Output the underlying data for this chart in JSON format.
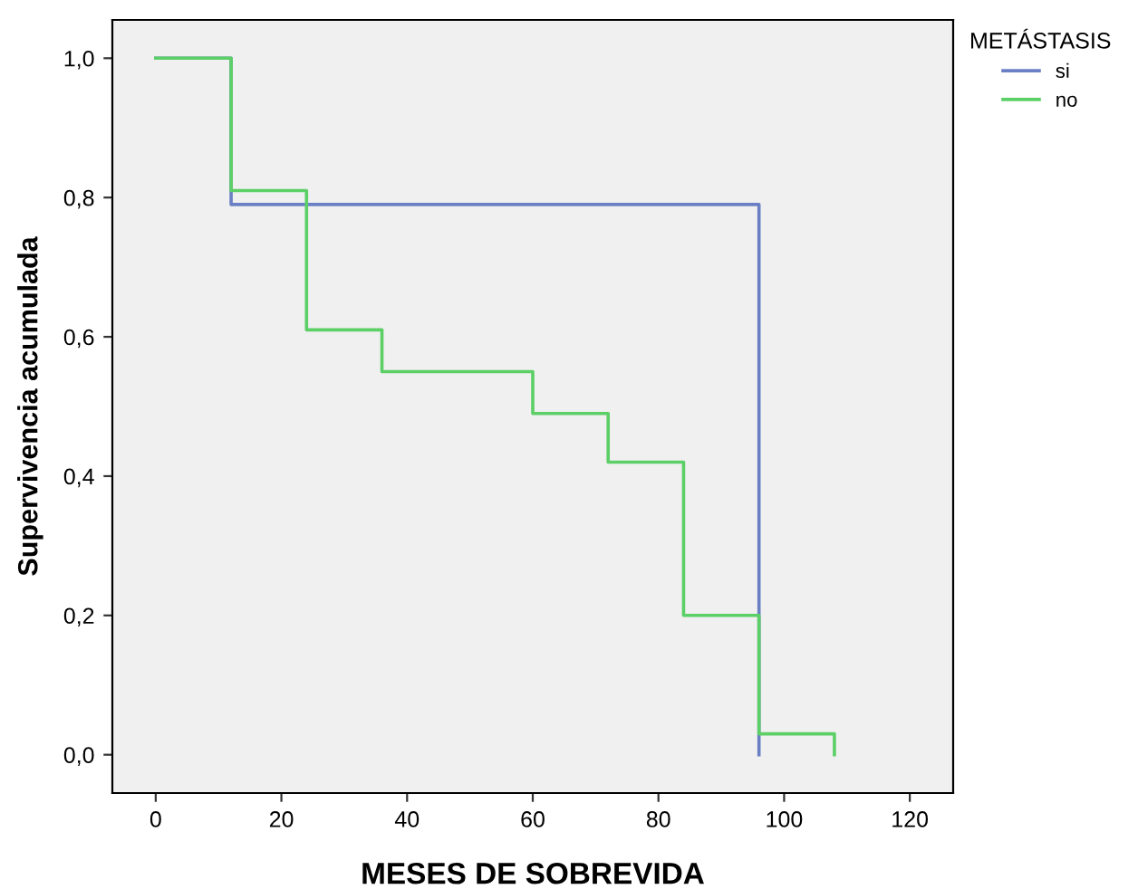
{
  "chart_data": {
    "type": "step",
    "xlabel": "MESES DE SOBREVIDA",
    "ylabel": "Supervivencia acumulada",
    "legend_title": "METÁSTASIS",
    "legend": "top right",
    "grid": false,
    "xlim": [
      -6.9,
      126.9
    ],
    "xticks": [
      0,
      20,
      40,
      60,
      80,
      100,
      120
    ],
    "ylim": [
      -0.055,
      1.055
    ],
    "yticks": [
      {
        "value": 0,
        "label": "0,0"
      },
      {
        "value": 0.2,
        "label": "0,2"
      },
      {
        "value": 0.4,
        "label": "0,4"
      },
      {
        "value": 0.6,
        "label": "0,6"
      },
      {
        "value": 0.8,
        "label": "0,8"
      },
      {
        "value": 1,
        "label": "1,0"
      }
    ],
    "series": [
      {
        "name": "si",
        "color": "#6b80c4",
        "x": [
          0,
          12,
          96
        ],
        "values": [
          1.0,
          0.79,
          0.0
        ]
      },
      {
        "name": "no",
        "color": "#5ccf66",
        "x": [
          0,
          12,
          24,
          36,
          60,
          72,
          84,
          96,
          108
        ],
        "values": [
          1.0,
          0.81,
          0.61,
          0.55,
          0.49,
          0.42,
          0.2,
          0.03,
          0.0
        ]
      }
    ]
  }
}
